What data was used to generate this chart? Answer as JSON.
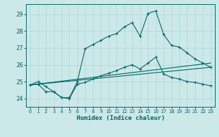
{
  "xlabel": "Humidex (Indice chaleur)",
  "bg_color": "#cce8e8",
  "line_color": "#006666",
  "xlim": [
    -0.5,
    23.5
  ],
  "ylim": [
    23.5,
    29.6
  ],
  "xticks": [
    0,
    1,
    2,
    3,
    4,
    5,
    6,
    7,
    8,
    9,
    10,
    11,
    12,
    13,
    14,
    15,
    16,
    17,
    18,
    19,
    20,
    21,
    22,
    23
  ],
  "yticks": [
    24,
    25,
    26,
    27,
    28,
    29
  ],
  "line1_x": [
    0,
    1,
    2,
    3,
    4,
    5,
    6,
    7,
    8,
    9,
    10,
    11,
    12,
    13,
    14,
    15,
    16,
    17,
    18,
    19,
    20,
    21,
    22,
    23
  ],
  "line1_y": [
    24.8,
    25.0,
    24.7,
    24.4,
    24.05,
    24.05,
    25.0,
    26.95,
    27.2,
    27.45,
    27.7,
    27.85,
    28.25,
    28.5,
    27.7,
    29.05,
    29.2,
    27.8,
    27.15,
    27.05,
    26.7,
    26.35,
    26.1,
    25.85
  ],
  "line2_x": [
    0,
    1,
    2,
    3,
    4,
    5,
    6,
    7,
    8,
    9,
    10,
    11,
    12,
    13,
    14,
    15,
    16,
    17,
    18,
    19,
    20,
    21,
    22,
    23
  ],
  "line2_y": [
    24.8,
    24.85,
    24.4,
    24.4,
    24.05,
    24.0,
    24.85,
    24.95,
    25.15,
    25.35,
    25.5,
    25.65,
    25.85,
    26.0,
    25.75,
    26.1,
    26.45,
    25.45,
    25.25,
    25.15,
    25.0,
    24.95,
    24.85,
    24.75
  ],
  "line3_x": [
    0,
    23
  ],
  "line3_y": [
    24.8,
    26.1
  ],
  "line4_x": [
    0,
    23
  ],
  "line4_y": [
    24.8,
    25.85
  ]
}
